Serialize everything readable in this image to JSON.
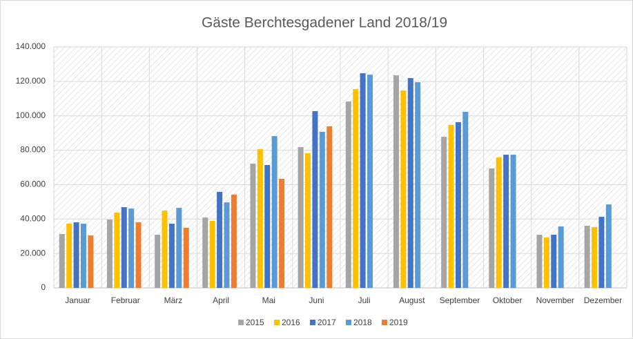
{
  "chart_data": {
    "type": "bar",
    "title": "Gäste Berchtesgadener Land 2018/19",
    "categories": [
      "Januar",
      "Februar",
      "März",
      "April",
      "Mai",
      "Juni",
      "Juli",
      "August",
      "September",
      "Oktober",
      "November",
      "Dezember"
    ],
    "series": [
      {
        "name": "2015",
        "color": "#a5a5a5",
        "values": [
          31300,
          39700,
          30900,
          40900,
          72200,
          81800,
          108300,
          123500,
          87800,
          69400,
          30900,
          36100
        ]
      },
      {
        "name": "2016",
        "color": "#ffc000",
        "values": [
          37300,
          43700,
          44900,
          38900,
          80600,
          78200,
          115500,
          114700,
          94700,
          75800,
          29300,
          35300
        ]
      },
      {
        "name": "2017",
        "color": "#4472c4",
        "values": [
          38100,
          46900,
          37300,
          55800,
          71400,
          102700,
          124700,
          121900,
          96300,
          77400,
          30900,
          41300
        ]
      },
      {
        "name": "2018",
        "color": "#5b9bd5",
        "values": [
          37300,
          46100,
          46500,
          49700,
          88200,
          90700,
          123900,
          119500,
          102300,
          77400,
          35700,
          48500
        ]
      },
      {
        "name": "2019",
        "color": "#ed7d31",
        "values": [
          30500,
          38100,
          34900,
          54200,
          63400,
          93900,
          null,
          null,
          null,
          null,
          null,
          null
        ]
      }
    ],
    "ylim": [
      0,
      140000
    ],
    "yticks": [
      0,
      {
        "value": 20000,
        "label": "20.000"
      },
      {
        "value": 40000,
        "label": "40.000"
      },
      {
        "value": 60000,
        "label": "60.000"
      },
      {
        "value": 80000,
        "label": "80.000"
      },
      {
        "value": 100000,
        "label": "100.000"
      },
      {
        "value": 120000,
        "label": "120.000"
      },
      {
        "value": 140000,
        "label": "140.000"
      }
    ],
    "grid": true,
    "legend": "bottom"
  }
}
